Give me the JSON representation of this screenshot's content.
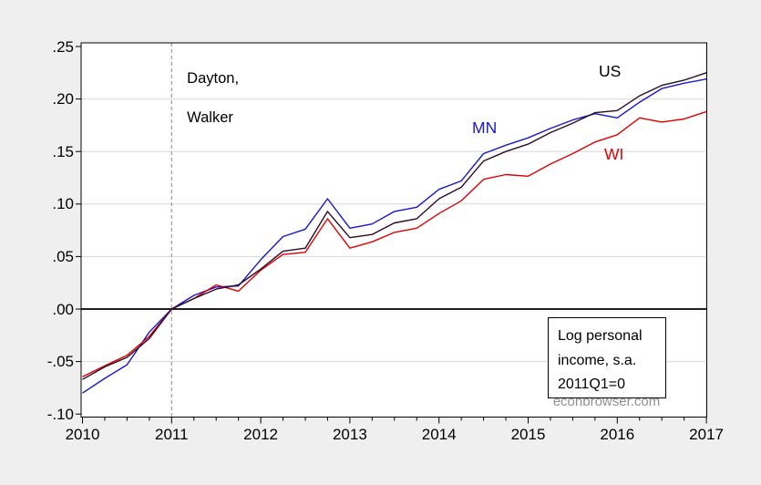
{
  "chart_data": {
    "type": "line",
    "title": "",
    "x_labels": [
      "2010Q1",
      "2010Q2",
      "2010Q3",
      "2010Q4",
      "2011Q1",
      "2011Q2",
      "2011Q3",
      "2011Q4",
      "2012Q1",
      "2012Q2",
      "2012Q3",
      "2012Q4",
      "2013Q1",
      "2013Q2",
      "2013Q3",
      "2013Q4",
      "2014Q1",
      "2014Q2",
      "2014Q3",
      "2014Q4",
      "2015Q1",
      "2015Q2",
      "2015Q3",
      "2015Q4",
      "2016Q1",
      "2016Q2",
      "2016Q3",
      "2016Q4",
      "2017Q1"
    ],
    "series": [
      {
        "name": "US",
        "color": "#2b0b25",
        "values": [
          -0.067,
          -0.055,
          -0.046,
          -0.028,
          0.0,
          0.01,
          0.019,
          0.023,
          0.038,
          0.055,
          0.058,
          0.093,
          0.068,
          0.071,
          0.082,
          0.086,
          0.105,
          0.116,
          0.141,
          0.15,
          0.157,
          0.168,
          0.177,
          0.187,
          0.189,
          0.203,
          0.213,
          0.218,
          0.225
        ]
      },
      {
        "name": "MN",
        "color": "#1717cb",
        "values": [
          -0.08,
          -0.066,
          -0.053,
          -0.022,
          0.0,
          0.013,
          0.021,
          0.022,
          0.047,
          0.069,
          0.076,
          0.105,
          0.077,
          0.081,
          0.093,
          0.097,
          0.114,
          0.122,
          0.148,
          0.156,
          0.163,
          0.172,
          0.18,
          0.186,
          0.182,
          0.197,
          0.21,
          0.215,
          0.219
        ]
      },
      {
        "name": "WI",
        "color": "#e00000",
        "values": [
          -0.0645,
          -0.054,
          -0.044,
          -0.026,
          0.0,
          0.01,
          0.023,
          0.017,
          0.037,
          0.052,
          0.054,
          0.086,
          0.058,
          0.064,
          0.073,
          0.077,
          0.091,
          0.103,
          0.1235,
          0.128,
          0.1265,
          0.138,
          0.148,
          0.159,
          0.166,
          0.182,
          0.178,
          0.181,
          0.188
        ]
      }
    ],
    "ylim": [
      -0.105,
      0.2555
    ],
    "x_range": [
      "2010Q1",
      "2017Q1"
    ],
    "y_ticks": [
      {
        "label": ".25",
        "value": 0.25
      },
      {
        "label": ".20",
        "value": 0.2
      },
      {
        "label": ".15",
        "value": 0.15
      },
      {
        "label": ".10",
        "value": 0.1
      },
      {
        "label": ".05",
        "value": 0.05
      },
      {
        "label": ".00",
        "value": 0.0
      },
      {
        "label": "-.05",
        "value": -0.05
      },
      {
        "label": "-.10",
        "value": -0.1
      }
    ],
    "grid_values": [
      0.2,
      0.15,
      0.1,
      0.05,
      -0.05
    ],
    "zero_line_value": 0,
    "x_ticks": [
      {
        "label": "2010",
        "index": 0
      },
      {
        "label": "2011",
        "index": 4
      },
      {
        "label": "2012",
        "index": 8
      },
      {
        "label": "2013",
        "index": 12
      },
      {
        "label": "2014",
        "index": 16
      },
      {
        "label": "2015",
        "index": 20
      },
      {
        "label": "2016",
        "index": 24
      },
      {
        "label": "2017",
        "index": 28
      }
    ],
    "vline": {
      "index": 4,
      "style": "dashed"
    },
    "grid": true,
    "legend_position": "none",
    "colors": {
      "background": "#efefef",
      "plot_background": "#ffffff",
      "grid": "#d7d7d7",
      "axis": "#000000",
      "vline": "#9a9a9a",
      "watermark": "#8f8f8f"
    }
  },
  "annotations": {
    "dayton_line1": "Dayton,",
    "dayton_line2": "Walker",
    "watermark": "econbrowser.com"
  },
  "note_box": {
    "line1": "Log personal",
    "line2": "income, s.a.",
    "line3": "2011Q1=0"
  }
}
